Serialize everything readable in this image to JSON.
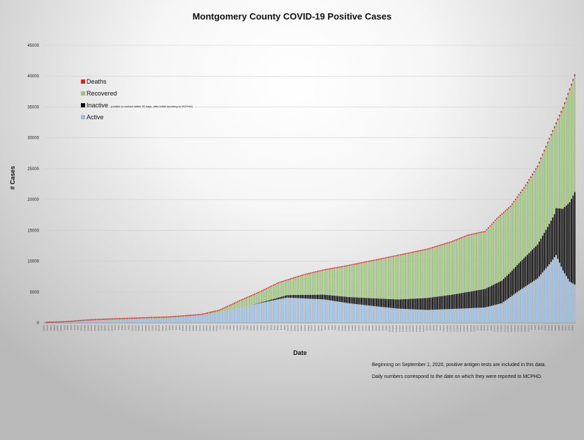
{
  "chart_data": {
    "type": "bar",
    "stacked": true,
    "title": "Montgomery County COVID-19 Positive Cases",
    "xlabel": "Date",
    "ylabel": "# Cases",
    "ylim": [
      0,
      45000
    ],
    "yticks": [
      "0",
      "5000",
      "10000",
      "15000",
      "20000",
      "25000",
      "30000",
      "35000",
      "40000",
      "45000"
    ],
    "grid": "horizontal",
    "legend_position": "upper-left",
    "x_first": "2020-03-20",
    "x_last": "2021-01-27",
    "legend": [
      {
        "name": "Deaths",
        "color": "#e0201b",
        "note": ""
      },
      {
        "name": "Recovered",
        "color": "#9cc27e",
        "note": ""
      },
      {
        "name": "Inactive",
        "color": "#0a0a0a",
        "note": "(unable to contact within 30 days, after initial reporting to MCPHD)"
      },
      {
        "name": "Active",
        "color": "#9dbbdb",
        "note": ""
      }
    ],
    "series_order": [
      "Active",
      "Inactive",
      "Recovered",
      "Deaths"
    ],
    "total_keyframes": [
      [
        "2020-03-20",
        0
      ],
      [
        "2020-04-01",
        100
      ],
      [
        "2020-04-15",
        400
      ],
      [
        "2020-05-01",
        600
      ],
      [
        "2020-06-01",
        900
      ],
      [
        "2020-06-20",
        1300
      ],
      [
        "2020-07-01",
        2000
      ],
      [
        "2020-07-15",
        3800
      ],
      [
        "2020-07-25",
        5000
      ],
      [
        "2020-08-05",
        6500
      ],
      [
        "2020-08-20",
        7800
      ],
      [
        "2020-09-01",
        8600
      ],
      [
        "2020-09-15",
        9300
      ],
      [
        "2020-10-01",
        10200
      ],
      [
        "2020-10-15",
        11000
      ],
      [
        "2020-11-01",
        12000
      ],
      [
        "2020-11-15",
        13200
      ],
      [
        "2020-11-25",
        14300
      ],
      [
        "2020-12-05",
        14900
      ],
      [
        "2020-12-12",
        17000
      ],
      [
        "2020-12-20",
        19000
      ],
      [
        "2020-12-28",
        22000
      ],
      [
        "2021-01-05",
        25500
      ],
      [
        "2021-01-12",
        30000
      ],
      [
        "2021-01-20",
        35000
      ],
      [
        "2021-01-27",
        40300
      ]
    ],
    "active_keyframes": [
      [
        "2020-03-20",
        0
      ],
      [
        "2020-04-15",
        350
      ],
      [
        "2020-06-01",
        700
      ],
      [
        "2020-07-01",
        1600
      ],
      [
        "2020-07-25",
        3200
      ],
      [
        "2020-08-10",
        4100
      ],
      [
        "2020-09-01",
        3800
      ],
      [
        "2020-09-15",
        3200
      ],
      [
        "2020-10-01",
        2700
      ],
      [
        "2020-10-15",
        2300
      ],
      [
        "2020-11-01",
        2100
      ],
      [
        "2020-11-20",
        2300
      ],
      [
        "2020-12-05",
        2500
      ],
      [
        "2020-12-15",
        3200
      ],
      [
        "2020-12-25",
        5200
      ],
      [
        "2021-01-05",
        7200
      ],
      [
        "2021-01-12",
        9500
      ],
      [
        "2021-01-16",
        11000
      ],
      [
        "2021-01-20",
        8500
      ],
      [
        "2021-01-24",
        6700
      ],
      [
        "2021-01-27",
        6200
      ]
    ],
    "inactive_keyframes": [
      [
        "2020-03-20",
        0
      ],
      [
        "2020-07-20",
        0
      ],
      [
        "2020-08-01",
        200
      ],
      [
        "2020-08-15",
        500
      ],
      [
        "2020-09-15",
        1000
      ],
      [
        "2020-10-15",
        1500
      ],
      [
        "2020-11-15",
        2300
      ],
      [
        "2020-12-05",
        3000
      ],
      [
        "2020-12-20",
        4000
      ],
      [
        "2021-01-05",
        5500
      ],
      [
        "2021-01-15",
        7000
      ],
      [
        "2021-01-20",
        10000
      ],
      [
        "2021-01-27",
        15000
      ]
    ],
    "deaths_keyframes": [
      [
        "2020-03-20",
        0
      ],
      [
        "2020-05-01",
        20
      ],
      [
        "2020-07-01",
        50
      ],
      [
        "2020-09-01",
        90
      ],
      [
        "2020-11-01",
        130
      ],
      [
        "2020-12-01",
        170
      ],
      [
        "2021-01-27",
        300
      ]
    ]
  },
  "notes": [
    "Beginning on September 1, 2020, positive antigen tests are included in this data.",
    "Daily numbers correspond to the date on which they were reported to MCPHD."
  ]
}
